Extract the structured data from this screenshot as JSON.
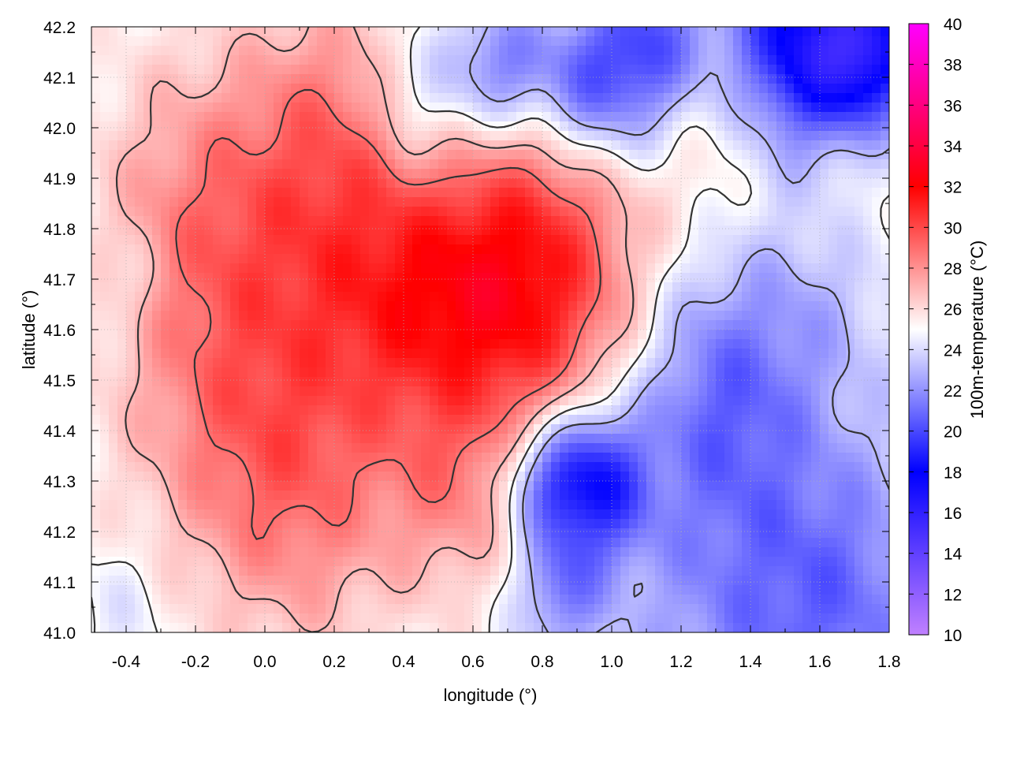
{
  "chart_data": {
    "type": "heatmap",
    "xlabel": "longitude (°)",
    "ylabel": "latitude (°)",
    "colorbar_label": "100m-temperature (°C)",
    "xlim": [
      -0.5,
      1.8
    ],
    "ylim": [
      41.0,
      42.2
    ],
    "x_ticks": [
      -0.4,
      -0.2,
      0.0,
      0.2,
      0.4,
      0.6,
      0.8,
      1.0,
      1.2,
      1.4,
      1.6,
      1.8
    ],
    "x_tick_labels": [
      "-0.4",
      "-0.2",
      "0.0",
      "0.2",
      "0.4",
      "0.6",
      "0.8",
      "1.0",
      "1.2",
      "1.4",
      "1.6",
      "1.8"
    ],
    "y_ticks": [
      41.0,
      41.1,
      41.2,
      41.3,
      41.4,
      41.5,
      41.6,
      41.7,
      41.8,
      41.9,
      42.0,
      42.1,
      42.2
    ],
    "y_tick_labels": [
      "41.0",
      "41.1",
      "41.2",
      "41.3",
      "41.4",
      "41.5",
      "41.6",
      "41.7",
      "41.8",
      "41.9",
      "42.0",
      "42.1",
      "42.2"
    ],
    "colorbar_range": [
      10,
      40
    ],
    "colorbar_ticks": [
      10,
      12,
      14,
      16,
      18,
      20,
      22,
      24,
      26,
      28,
      30,
      32,
      34,
      36,
      38,
      40
    ],
    "colorbar_tick_labels": [
      "10",
      "12",
      "14",
      "16",
      "18",
      "20",
      "22",
      "24",
      "26",
      "28",
      "30",
      "32",
      "34",
      "36",
      "38",
      "40"
    ],
    "colormap": [
      {
        "v": 10,
        "color": "#c080ff"
      },
      {
        "v": 18,
        "color": "#0000ff"
      },
      {
        "v": 25,
        "color": "#ffffff"
      },
      {
        "v": 32,
        "color": "#ff0000"
      },
      {
        "v": 40,
        "color": "#ff00ff"
      }
    ],
    "contour_color": "#333333",
    "grid": true,
    "field": {
      "base": 25.0,
      "features": [
        {
          "lon": 0.78,
          "lat": 41.68,
          "r": 0.32,
          "amp": 6.0
        },
        {
          "lon": 0.45,
          "lat": 41.65,
          "r": 0.3,
          "amp": 3.5
        },
        {
          "lon": 0.15,
          "lat": 41.75,
          "r": 0.35,
          "amp": 3.0
        },
        {
          "lon": -0.2,
          "lat": 41.85,
          "r": 0.3,
          "amp": 2.5
        },
        {
          "lon": 0.1,
          "lat": 41.25,
          "r": 0.3,
          "amp": 3.0
        },
        {
          "lon": -0.15,
          "lat": 41.45,
          "r": 0.3,
          "amp": 2.2
        },
        {
          "lon": 0.55,
          "lat": 41.25,
          "r": 0.2,
          "amp": 2.0
        },
        {
          "lon": 0.2,
          "lat": 42.05,
          "r": 0.25,
          "amp": 2.0
        },
        {
          "lon": 0.85,
          "lat": 41.98,
          "r": 0.18,
          "amp": 1.5
        },
        {
          "lon": 1.3,
          "lat": 42.0,
          "r": 0.2,
          "amp": 1.5
        },
        {
          "lon": 1.65,
          "lat": 41.9,
          "r": 0.2,
          "amp": 1.2
        },
        {
          "lon": 1.55,
          "lat": 42.16,
          "r": 0.22,
          "amp": -7.5
        },
        {
          "lon": 1.75,
          "lat": 42.15,
          "r": 0.15,
          "amp": -6.0
        },
        {
          "lon": 1.1,
          "lat": 42.15,
          "r": 0.18,
          "amp": -5.0
        },
        {
          "lon": 0.9,
          "lat": 42.06,
          "r": 0.16,
          "amp": -4.5
        },
        {
          "lon": 0.68,
          "lat": 42.12,
          "r": 0.14,
          "amp": -4.0
        },
        {
          "lon": 0.45,
          "lat": 42.05,
          "r": 0.15,
          "amp": -2.5
        },
        {
          "lon": 0.95,
          "lat": 41.3,
          "r": 0.15,
          "amp": -6.0
        },
        {
          "lon": 0.8,
          "lat": 41.3,
          "r": 0.12,
          "amp": -3.5
        },
        {
          "lon": 1.3,
          "lat": 41.5,
          "r": 0.25,
          "amp": -3.0
        },
        {
          "lon": 1.4,
          "lat": 41.1,
          "r": 0.45,
          "amp": -3.2
        },
        {
          "lon": 1.7,
          "lat": 41.05,
          "r": 0.3,
          "amp": -2.0
        },
        {
          "lon": 0.85,
          "lat": 41.08,
          "r": 0.12,
          "amp": -3.0
        },
        {
          "lon": 1.6,
          "lat": 41.7,
          "r": 0.22,
          "amp": -1.5
        },
        {
          "lon": -0.4,
          "lat": 41.7,
          "r": 0.1,
          "amp": -1.0
        },
        {
          "lon": -0.4,
          "lat": 41.05,
          "r": 0.12,
          "amp": -0.8
        }
      ],
      "contour_levels": [
        23,
        25,
        27,
        29
      ]
    }
  }
}
